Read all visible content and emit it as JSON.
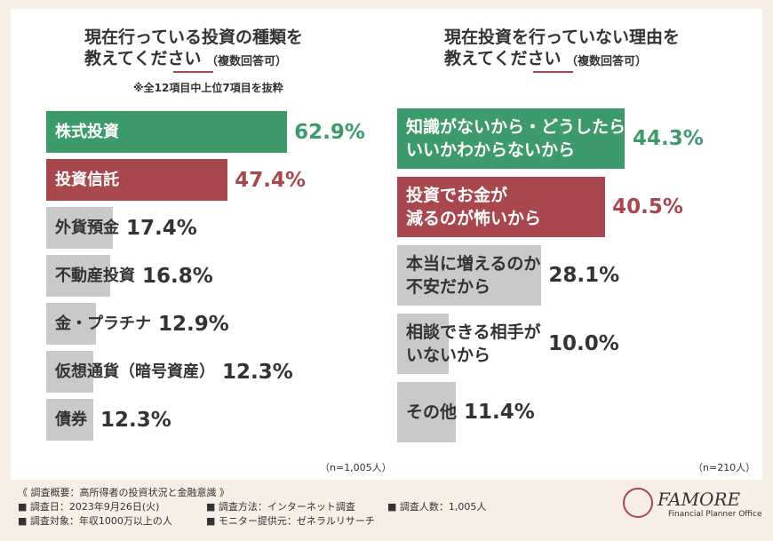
{
  "chart_data": [
    {
      "type": "bar",
      "title": [
        "現在行っている投資の種類を",
        "教えてください"
      ],
      "subtitle": "（複数回答可）",
      "annotation": "※全12項目中上位7項目を抜粋",
      "sample": "（n=1,005人）",
      "categories": [
        "株式投資",
        "投資信託",
        "外貨預金",
        "不動産投資",
        "金・プラチナ",
        "仮想通貨（暗号資産）",
        "債券"
      ],
      "values": [
        62.9,
        47.4,
        17.4,
        16.8,
        12.9,
        12.3,
        12.3
      ],
      "value_labels": [
        "62.9%",
        "47.4%",
        "17.4%",
        "16.8%",
        "12.9%",
        "12.3%",
        "12.3%"
      ],
      "colors": [
        "#3d9b6b",
        "#a9474f",
        "#c9c9c9",
        "#c9c9c9",
        "#c9c9c9",
        "#c9c9c9",
        "#c9c9c9"
      ]
    },
    {
      "type": "bar",
      "title": [
        "現在投資を行っていない理由を",
        "教えてください"
      ],
      "subtitle": "（複数回答可）",
      "sample": "（n=210人）",
      "categories": [
        "知識がないから・どうしたら\nいいかわからないから",
        "投資でお金が\n減るのが怖いから",
        "本当に増えるのか\n不安だから",
        "相談できる相手が\nいないから",
        "その他"
      ],
      "values": [
        44.3,
        40.5,
        28.1,
        10.0,
        11.4
      ],
      "value_labels": [
        "44.3%",
        "40.5%",
        "28.1%",
        "10.0%",
        "11.4%"
      ],
      "colors": [
        "#3d9b6b",
        "#a9474f",
        "#c9c9c9",
        "#c9c9c9",
        "#c9c9c9"
      ]
    }
  ],
  "footer": {
    "heading": "《 調査概要：高所得者の投資状況と金融意識 》",
    "items": [
      "■ 調査日：2023年9月26日(火)",
      "■ 調査方法：インターネット調査",
      "■ 調査人数：1,005人",
      "■ 調査対象：年収1000万以上の人",
      "■ モニター提供元：ゼネラルリサーチ"
    ],
    "logo": "FAMORE",
    "logo_sub": "Financial Planner Office"
  }
}
